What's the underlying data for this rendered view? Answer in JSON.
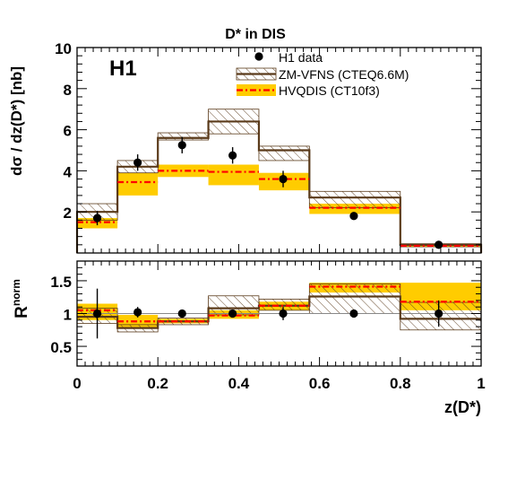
{
  "chart_data": [
    {
      "type": "line",
      "title": "D* in DIS",
      "experiment_label": "H1",
      "ylabel": "dσ / dz(D*) [nb]",
      "xlabel": "",
      "xlim": [
        0,
        1
      ],
      "ylim": [
        0,
        10
      ],
      "y_ticks": [
        "2",
        "4",
        "6",
        "8",
        "10"
      ],
      "bins": [
        [
          0,
          0.1
        ],
        [
          0.1,
          0.2
        ],
        [
          0.2,
          0.325
        ],
        [
          0.325,
          0.45
        ],
        [
          0.45,
          0.575
        ],
        [
          0.575,
          0.8
        ],
        [
          0.8,
          1.0
        ]
      ],
      "legend": {
        "placement": "top-right",
        "entries": [
          "H1 data",
          "ZM-VFNS (CTEQ6.6M)",
          "HVQDIS (CT10f3)"
        ]
      },
      "series": [
        {
          "name": "H1 data",
          "x": [
            0.05,
            0.15,
            0.26,
            0.385,
            0.51,
            0.685,
            0.895
          ],
          "y": [
            1.7,
            4.4,
            5.25,
            4.75,
            3.6,
            1.8,
            0.4
          ],
          "yerr": [
            0.35,
            0.4,
            0.4,
            0.4,
            0.4,
            0.15,
            0.1
          ],
          "color": "#000000"
        },
        {
          "name": "ZM-VFNS (CTEQ6.6M)",
          "central": [
            2.0,
            4.2,
            5.6,
            6.4,
            5.0,
            2.7,
            0.4
          ],
          "low": [
            1.6,
            3.9,
            5.5,
            5.8,
            4.5,
            2.2,
            0.3
          ],
          "high": [
            2.4,
            4.5,
            5.85,
            7.0,
            5.2,
            3.0,
            0.45
          ],
          "color": "#5a3a1a"
        },
        {
          "name": "HVQDIS (CT10f3)",
          "central": [
            1.5,
            3.45,
            4.0,
            3.95,
            3.6,
            2.2,
            0.35
          ],
          "low": [
            1.2,
            2.8,
            3.7,
            3.3,
            3.05,
            1.9,
            0.3
          ],
          "high": [
            1.7,
            3.9,
            4.3,
            4.3,
            3.9,
            2.4,
            0.4
          ],
          "color": "#ff0000",
          "band_color": "#ffcc00"
        }
      ]
    },
    {
      "type": "line",
      "ylabel": "R",
      "ylabel_sup": "norm",
      "xlabel": "z(D*)",
      "xlim": [
        0,
        1
      ],
      "ylim": [
        0.2,
        1.8
      ],
      "y_ticks": [
        "0.5",
        "1",
        "1.5"
      ],
      "x_ticks": [
        "0",
        "0.2",
        "0.4",
        "0.6",
        "0.8",
        "1"
      ],
      "bins": [
        [
          0,
          0.1
        ],
        [
          0.1,
          0.2
        ],
        [
          0.2,
          0.325
        ],
        [
          0.325,
          0.45
        ],
        [
          0.45,
          0.575
        ],
        [
          0.575,
          0.8
        ],
        [
          0.8,
          1.0
        ]
      ],
      "series": [
        {
          "name": "H1 data",
          "x": [
            0.05,
            0.15,
            0.26,
            0.385,
            0.51,
            0.685,
            0.895
          ],
          "y": [
            1.0,
            1.02,
            1.0,
            1.0,
            1.0,
            1.0,
            1.0
          ],
          "yerr": [
            0.38,
            0.08,
            0.05,
            0.06,
            0.1,
            0.04,
            0.2
          ],
          "color": "#000000"
        },
        {
          "name": "ZM-VFNS",
          "central": [
            0.95,
            0.78,
            0.88,
            1.08,
            1.12,
            1.26,
            0.92
          ],
          "low": [
            0.85,
            0.72,
            0.83,
            0.98,
            1.05,
            1.0,
            0.75
          ],
          "high": [
            1.08,
            0.83,
            0.93,
            1.27,
            1.22,
            1.45,
            1.17
          ],
          "color": "#5a3a1a"
        },
        {
          "name": "HVQDIS",
          "central": [
            1.05,
            0.88,
            0.88,
            0.97,
            1.12,
            1.41,
            1.18
          ],
          "low": [
            0.9,
            0.78,
            0.85,
            0.92,
            1.05,
            1.32,
            1.05
          ],
          "high": [
            1.15,
            0.98,
            0.92,
            1.05,
            1.18,
            1.47,
            1.47
          ],
          "color": "#ff0000",
          "band_color": "#ffcc00"
        }
      ]
    }
  ]
}
